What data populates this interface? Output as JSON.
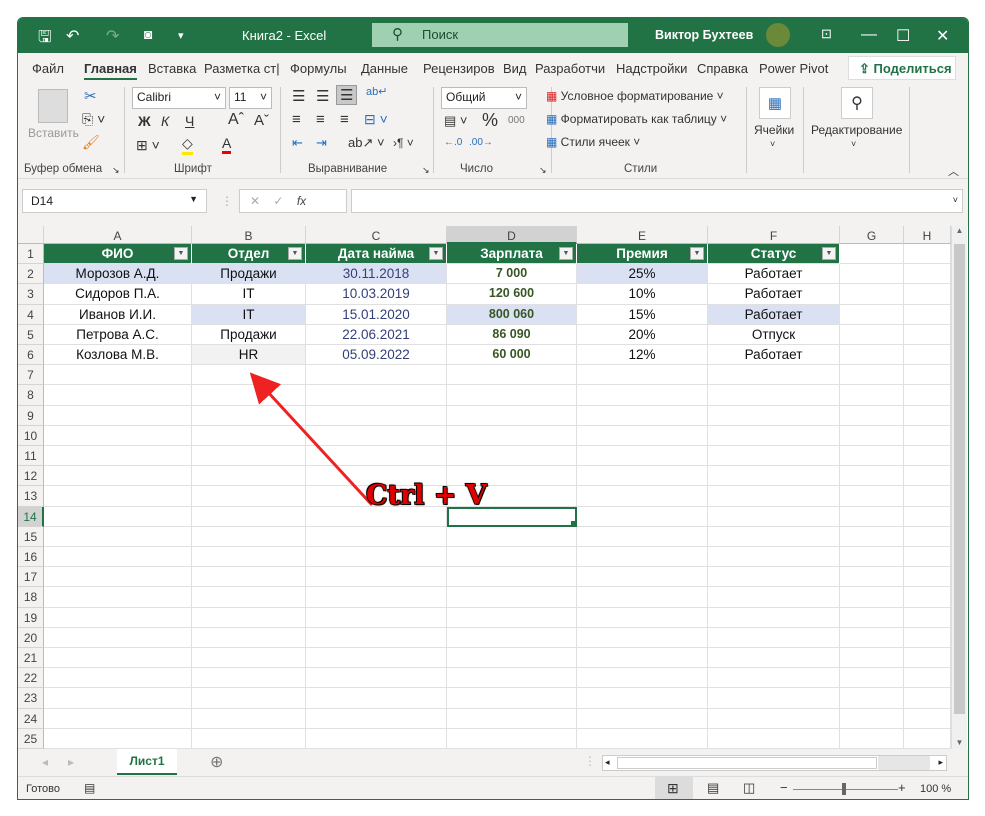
{
  "titlebar": {
    "title": "Книга2  -  Excel",
    "search_placeholder": "Поиск",
    "user": "Виктор Бухтеев"
  },
  "tabs": [
    "Файл",
    "Главная",
    "Вставка",
    "Разметка ст|",
    "Формулы",
    "Данные",
    "Рецензиров",
    "Вид",
    "Разработчи",
    "Надстройки",
    "Справка",
    "Power Pivot"
  ],
  "active_tab": "Главная",
  "share_label": "Поделиться",
  "ribbon": {
    "clipboard": {
      "paste": "Вставить",
      "label": "Буфер обмена"
    },
    "font": {
      "name": "Calibri",
      "size": "11",
      "bold": "Ж",
      "italic": "К",
      "underline": "Ч",
      "label": "Шрифт"
    },
    "alignment": {
      "label": "Выравнивание"
    },
    "number": {
      "format": "Общий",
      "label": "Число",
      "percent": "%",
      "thousands": "000"
    },
    "styles": {
      "conditional": "Условное форматирование",
      "as_table": "Форматировать как таблицу",
      "cell_styles": "Стили ячеек",
      "label": "Стили"
    },
    "cells": {
      "label": "Ячейки"
    },
    "editing": {
      "label": "Редактирование"
    }
  },
  "formula_bar": {
    "name_box": "D14",
    "formula": "",
    "fx": "fx"
  },
  "columns": [
    "A",
    "B",
    "C",
    "D",
    "E",
    "F",
    "G",
    "H"
  ],
  "selected_cell": "D14",
  "table": {
    "headers": [
      "ФИО",
      "Отдел",
      "Дата найма",
      "Зарплата",
      "Премия",
      "Статус"
    ],
    "rows": [
      [
        "Морозов А.Д.",
        "Продажи",
        "30.11.2018",
        "7 000",
        "25%",
        "Работает"
      ],
      [
        "Сидоров П.А.",
        "IT",
        "10.03.2019",
        "120 600",
        "10%",
        "Работает"
      ],
      [
        "Иванов И.И.",
        "IT",
        "15.01.2020",
        "800 060",
        "15%",
        "Работает"
      ],
      [
        "Петрова А.С.",
        "Продажи",
        "22.06.2021",
        "86 090",
        "20%",
        "Отпуск"
      ],
      [
        "Козлова М.В.",
        "HR",
        "05.09.2022",
        "60 000",
        "12%",
        "Работает"
      ]
    ]
  },
  "row_count": 25,
  "annotation": {
    "text": "Ctrl + V",
    "color": "#e00000"
  },
  "sheet_tabs": [
    "Лист1"
  ],
  "status": {
    "ready": "Готово",
    "zoom": "100 %"
  },
  "colors": {
    "accent": "#217346",
    "highlight": "#d9e1f2",
    "salary": "#375623",
    "date": "#34407a"
  }
}
